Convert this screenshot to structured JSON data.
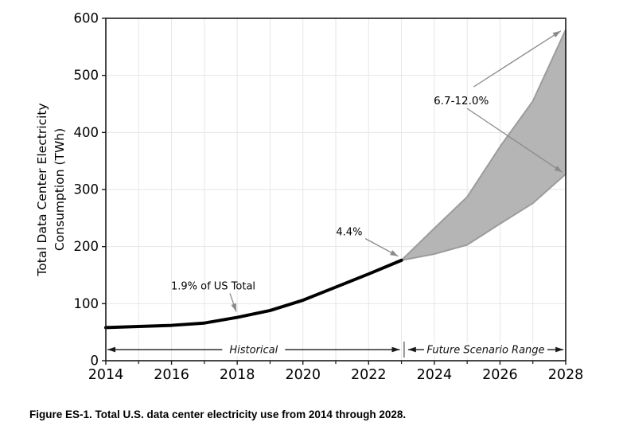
{
  "figure": {
    "caption": "Figure ES-1. Total U.S. data center electricity use from 2014 through 2028."
  },
  "chart_data": {
    "type": "area",
    "title": "",
    "xlabel": "",
    "ylabel_line1": "Total Data Center Electricity",
    "ylabel_line2": "Consumption (TWh)",
    "xlim": [
      2014,
      2028
    ],
    "ylim": [
      0,
      600
    ],
    "grid": true,
    "x_major_ticks": [
      2014,
      2016,
      2018,
      2020,
      2022,
      2024,
      2026,
      2028
    ],
    "x_minor_ticks": [
      2015,
      2017,
      2019,
      2021,
      2023,
      2025,
      2027
    ],
    "y_ticks": [
      0,
      100,
      200,
      300,
      400,
      500,
      600
    ],
    "series": [
      {
        "name": "Historical",
        "type": "line",
        "color": "#000000",
        "x": [
          2014,
          2015,
          2016,
          2017,
          2018,
          2019,
          2020,
          2021,
          2022,
          2023
        ],
        "values": [
          58,
          60,
          62,
          66,
          76,
          88,
          106,
          129,
          152,
          176
        ]
      },
      {
        "name": "Future Scenario Range",
        "type": "band",
        "fill_color": "#b5b5b5",
        "edge_color": "#9c9c9c",
        "x": [
          2023,
          2024,
          2025,
          2026,
          2027,
          2028
        ],
        "lower": [
          176,
          187,
          203,
          240,
          276,
          327
        ],
        "upper": [
          176,
          232,
          287,
          375,
          455,
          580
        ]
      }
    ],
    "annotations": [
      {
        "text": "1.9% of US Total",
        "tx": 2017.27,
        "ty": 125,
        "font_size": 13,
        "color": "#000000",
        "arrows": [
          {
            "x1": 2017.78,
            "y1": 118,
            "x2": 2017.97,
            "y2": 86
          }
        ]
      },
      {
        "text": "4.4%",
        "tx": 2021.41,
        "ty": 220,
        "font_size": 13,
        "color": "#000000",
        "arrows": [
          {
            "x1": 2021.9,
            "y1": 214,
            "x2": 2022.9,
            "y2": 183
          }
        ]
      },
      {
        "text": "6.7-12.0%",
        "tx": 2024.82,
        "ty": 449,
        "font_size": 13.5,
        "color": "#000000",
        "arrows": [
          {
            "x1": 2025.2,
            "y1": 480,
            "x2": 2027.85,
            "y2": 578
          },
          {
            "x1": 2025.0,
            "y1": 442,
            "x2": 2027.9,
            "y2": 330
          }
        ]
      }
    ],
    "arrow_color": "#8a8a8a",
    "range_annotations": [
      {
        "text": "Historical",
        "x1": 2014.05,
        "x2": 2022.95,
        "y": 19.5
      },
      {
        "text": "Future Scenario Range",
        "x1": 2023.2,
        "x2": 2027.93,
        "y": 19.5
      }
    ],
    "range_separator_x": 2023.08,
    "colors": {
      "grid": "#e6e6e6",
      "spine": "#1a1a1a",
      "tick_label": "#000000",
      "range_arrow": "#1a1a1a",
      "separator": "#888888"
    }
  }
}
